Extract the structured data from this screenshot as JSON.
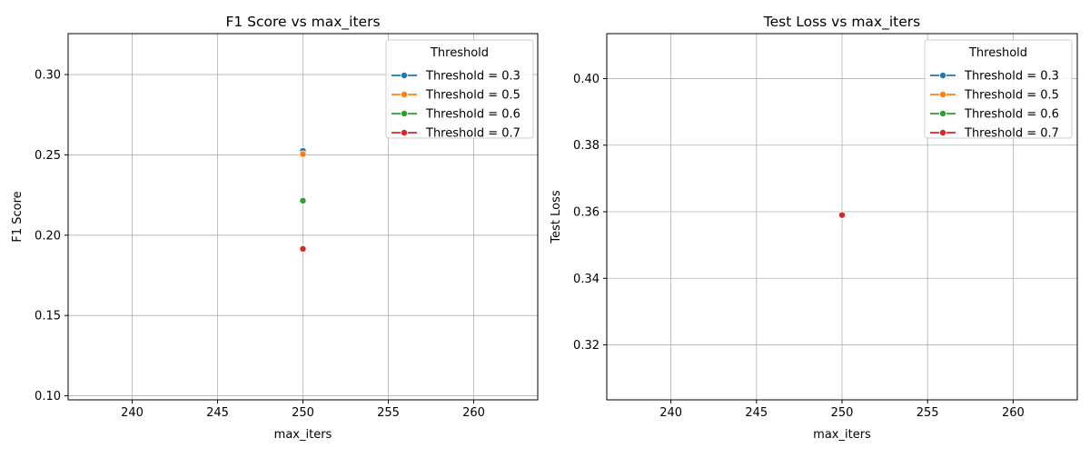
{
  "chart_data": [
    {
      "type": "line",
      "title": "F1 Score vs max_iters",
      "xlabel": "max_iters",
      "ylabel": "F1 Score",
      "xlim": [
        236.25,
        263.75
      ],
      "ylim": [
        0.0975,
        0.3255
      ],
      "xticks": [
        240,
        245,
        250,
        255,
        260
      ],
      "yticks": [
        0.1,
        0.15,
        0.2,
        0.25,
        0.3
      ],
      "xtick_labels": [
        "240",
        "245",
        "250",
        "255",
        "260"
      ],
      "ytick_labels": [
        "0.10",
        "0.15",
        "0.20",
        "0.25",
        "0.30"
      ],
      "grid": true,
      "legend": {
        "title": "Threshold",
        "placement": "top-right"
      },
      "series": [
        {
          "name": "Threshold = 0.3",
          "color": "#1f77b4",
          "points": [
            {
              "x": 250,
              "y": 0.2525
            }
          ]
        },
        {
          "name": "Threshold = 0.5",
          "color": "#ff7f0e",
          "points": [
            {
              "x": 250,
              "y": 0.2505
            }
          ]
        },
        {
          "name": "Threshold = 0.6",
          "color": "#2ca02c",
          "points": [
            {
              "x": 250,
              "y": 0.2215
            }
          ]
        },
        {
          "name": "Threshold = 0.7",
          "color": "#d62728",
          "points": [
            {
              "x": 250,
              "y": 0.1915
            }
          ]
        }
      ]
    },
    {
      "type": "line",
      "title": "Test Loss vs max_iters",
      "xlabel": "max_iters",
      "ylabel": "Test Loss",
      "xlim": [
        236.25,
        263.75
      ],
      "ylim": [
        0.3035,
        0.4135
      ],
      "xticks": [
        240,
        245,
        250,
        255,
        260
      ],
      "yticks": [
        0.32,
        0.34,
        0.36,
        0.38,
        0.4
      ],
      "xtick_labels": [
        "240",
        "245",
        "250",
        "255",
        "260"
      ],
      "ytick_labels": [
        "0.32",
        "0.34",
        "0.36",
        "0.38",
        "0.40"
      ],
      "grid": true,
      "legend": {
        "title": "Threshold",
        "placement": "top-right"
      },
      "series": [
        {
          "name": "Threshold = 0.3",
          "color": "#1f77b4",
          "points": [
            {
              "x": 250,
              "y": 0.359
            }
          ]
        },
        {
          "name": "Threshold = 0.5",
          "color": "#ff7f0e",
          "points": [
            {
              "x": 250,
              "y": 0.359
            }
          ]
        },
        {
          "name": "Threshold = 0.6",
          "color": "#2ca02c",
          "points": [
            {
              "x": 250,
              "y": 0.359
            }
          ]
        },
        {
          "name": "Threshold = 0.7",
          "color": "#d62728",
          "points": [
            {
              "x": 250,
              "y": 0.359
            }
          ]
        }
      ]
    }
  ]
}
